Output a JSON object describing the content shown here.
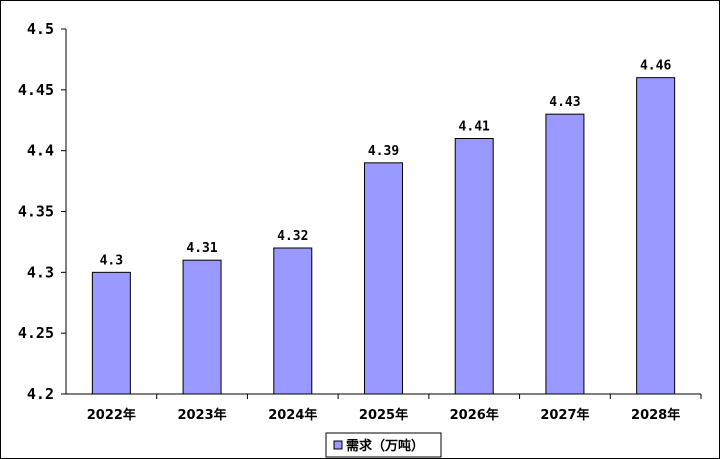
{
  "chart_data": {
    "type": "bar",
    "title": "",
    "xlabel": "",
    "ylabel": "",
    "categories": [
      "2022年",
      "2023年",
      "2024年",
      "2025年",
      "2026年",
      "2027年",
      "2028年"
    ],
    "series": [
      {
        "name": "需求（万吨）",
        "values": [
          4.3,
          4.31,
          4.32,
          4.39,
          4.41,
          4.43,
          4.46
        ]
      }
    ],
    "data_labels": [
      "4.3",
      "4.31",
      "4.32",
      "4.39",
      "4.41",
      "4.43",
      "4.46"
    ],
    "ylim": [
      4.2,
      4.5
    ],
    "yticks": [
      "4.2",
      "4.25",
      "4.3",
      "4.35",
      "4.4",
      "4.45",
      "4.5"
    ],
    "grid": false,
    "legend": "bottom-center",
    "colors": {
      "bar": "#9999ff",
      "bar_stroke": "#000000",
      "axis": "#000000"
    }
  }
}
